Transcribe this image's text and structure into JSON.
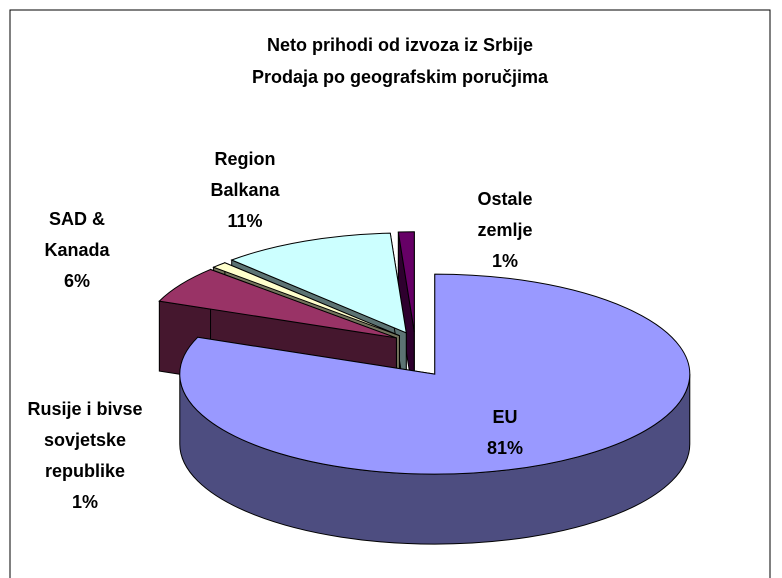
{
  "chart_data": {
    "type": "pie3d",
    "title": "Neto prihodi od izvoza iz Srbije",
    "subtitle": "Prodaja po geografskim poručjima",
    "categories": [
      "EU",
      "SAD &\nKanada",
      "Rusije i bivse\nsovjetske\nrepublike",
      "Region\nBalkana",
      "Ostale\nzemlje"
    ],
    "values": [
      81,
      6,
      1,
      11,
      1
    ],
    "value_labels": [
      "81%",
      "6%",
      "1%",
      "11%",
      "1%"
    ],
    "colors": [
      "#9999ff",
      "#993366",
      "#ffffcc",
      "#ccffff",
      "#660066"
    ]
  }
}
